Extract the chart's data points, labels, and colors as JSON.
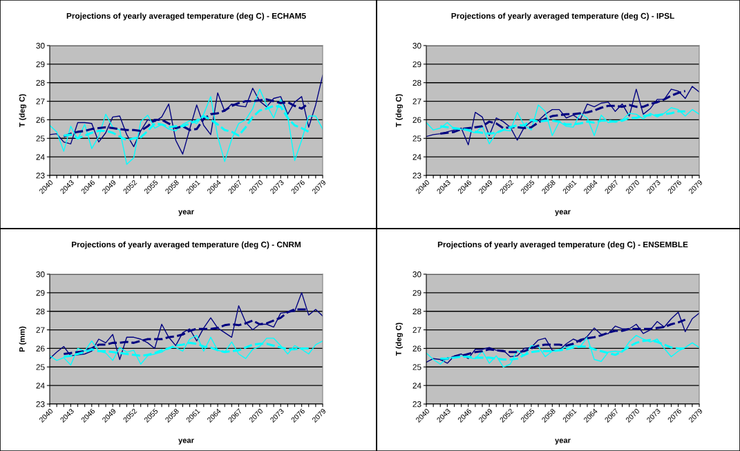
{
  "chart_data": [
    {
      "type": "line",
      "title": "Projections of yearly averaged temperature (deg C) - ECHAM5",
      "xlabel": "year",
      "ylabel": "T (deg C)",
      "categories": [
        "2040",
        null,
        null,
        "2043",
        null,
        null,
        "2046",
        null,
        null,
        "2049",
        null,
        null,
        "2052",
        null,
        null,
        "2055",
        null,
        null,
        "2058",
        null,
        null,
        "2061",
        null,
        null,
        "2064",
        null,
        null,
        "2067",
        null,
        null,
        "2070",
        null,
        null,
        "2073",
        null,
        null,
        "2076",
        null,
        null,
        "2079"
      ],
      "ylim": [
        23,
        30
      ],
      "yticks": [
        23,
        24,
        25,
        26,
        27,
        28,
        29,
        30
      ],
      "grid": "y",
      "marker": "none",
      "series": [
        {
          "color": "#000080",
          "line_style": "solid",
          "values": [
            25.2,
            25.25,
            24.8,
            24.7,
            25.85,
            25.85,
            25.8,
            24.8,
            25.3,
            26.15,
            26.2,
            25.2,
            24.55,
            25.4,
            26.0,
            25.9,
            26.15,
            26.85,
            24.9,
            24.15,
            25.5,
            26.8,
            25.7,
            25.2,
            27.45,
            26.45,
            26.85,
            26.75,
            26.7,
            27.7,
            27.0,
            26.7,
            27.15,
            27.25,
            26.3,
            26.95,
            27.25,
            25.6,
            26.8,
            28.4
          ]
        },
        {
          "color": "#00ffff",
          "line_style": "solid",
          "values": [
            25.7,
            25.35,
            24.3,
            25.65,
            24.95,
            25.75,
            24.45,
            25.1,
            26.3,
            25.6,
            25.45,
            23.6,
            23.95,
            25.9,
            26.25,
            25.55,
            25.75,
            25.5,
            25.4,
            25.75,
            25.95,
            25.8,
            26.3,
            27.25,
            25.1,
            23.75,
            24.95,
            25.8,
            26.0,
            26.6,
            27.65,
            26.8,
            26.1,
            27.1,
            26.2,
            23.8,
            24.9,
            26.2,
            26.2,
            25.5
          ]
        },
        {
          "color": "#000080",
          "line_style": "dashed",
          "values": [
            null,
            null,
            25.1,
            25.25,
            25.35,
            25.4,
            25.5,
            25.55,
            25.6,
            25.55,
            25.5,
            25.45,
            25.45,
            25.4,
            25.65,
            26.0,
            26.0,
            25.8,
            25.55,
            25.65,
            25.45,
            25.5,
            26.05,
            26.3,
            26.35,
            26.5,
            26.75,
            26.9,
            27.0,
            27.0,
            27.05,
            27.1,
            27.0,
            26.9,
            26.95,
            26.75,
            26.6,
            26.9,
            null,
            null
          ]
        },
        {
          "color": "#00ffff",
          "line_style": "dashed",
          "values": [
            null,
            null,
            25.15,
            25.2,
            25.0,
            25.15,
            25.3,
            25.4,
            25.4,
            25.3,
            25.1,
            24.9,
            25.0,
            25.05,
            25.4,
            25.8,
            25.75,
            25.6,
            25.65,
            25.65,
            25.8,
            25.95,
            26.2,
            26.0,
            25.75,
            25.45,
            25.35,
            25.15,
            25.6,
            26.15,
            26.5,
            26.6,
            26.75,
            26.7,
            26.1,
            25.7,
            25.55,
            25.35,
            null,
            null
          ]
        }
      ]
    },
    {
      "type": "line",
      "title": "Projections of yearly averaged temperature (deg C) - IPSL",
      "xlabel": "year",
      "ylabel": "T (deg C)",
      "categories": [
        "2040",
        null,
        null,
        "2043",
        null,
        null,
        "2046",
        null,
        null,
        "2049",
        null,
        null,
        "2052",
        null,
        null,
        "2055",
        null,
        null,
        "2058",
        null,
        null,
        "2061",
        null,
        null,
        "2064",
        null,
        null,
        "2067",
        null,
        null,
        "2070",
        null,
        null,
        "2073",
        null,
        null,
        "2076",
        null,
        null,
        "2079"
      ],
      "ylim": [
        23,
        30
      ],
      "yticks": [
        23,
        24,
        25,
        26,
        27,
        28,
        29,
        30
      ],
      "grid": "y",
      "marker": "none",
      "series": [
        {
          "color": "#000080",
          "line_style": "solid",
          "values": [
            25.1,
            25.2,
            25.25,
            25.35,
            25.45,
            25.55,
            24.65,
            26.4,
            26.15,
            25.15,
            26.1,
            25.9,
            25.6,
            24.9,
            25.6,
            25.9,
            25.95,
            26.3,
            26.55,
            26.55,
            26.1,
            26.25,
            26.0,
            26.85,
            26.7,
            26.9,
            26.95,
            26.45,
            26.85,
            26.2,
            27.65,
            26.3,
            26.6,
            27.1,
            27.1,
            27.65,
            27.55,
            27.15,
            27.8,
            27.5
          ]
        },
        {
          "color": "#00ffff",
          "line_style": "solid",
          "values": [
            25.85,
            25.45,
            25.55,
            25.85,
            25.5,
            25.5,
            25.4,
            25.3,
            25.65,
            24.7,
            25.3,
            25.45,
            25.4,
            26.4,
            25.7,
            25.45,
            26.8,
            26.45,
            25.15,
            25.9,
            25.65,
            25.6,
            26.35,
            26.1,
            25.15,
            26.25,
            25.85,
            25.9,
            26.0,
            26.35,
            26.3,
            26.05,
            26.35,
            26.15,
            26.35,
            26.65,
            26.55,
            26.2,
            26.55,
            26.3
          ]
        },
        {
          "color": "#000080",
          "line_style": "dashed",
          "values": [
            null,
            null,
            25.25,
            25.3,
            25.35,
            25.5,
            25.55,
            25.6,
            25.65,
            25.9,
            25.8,
            25.55,
            25.6,
            25.6,
            25.55,
            25.6,
            25.85,
            26.05,
            26.2,
            26.25,
            26.3,
            26.3,
            26.35,
            26.4,
            26.5,
            26.65,
            26.75,
            26.75,
            26.7,
            26.8,
            26.7,
            26.7,
            26.85,
            26.95,
            27.1,
            27.3,
            27.45,
            27.55,
            null,
            null
          ]
        },
        {
          "color": "#00ffff",
          "line_style": "dashed",
          "values": [
            null,
            null,
            25.65,
            25.6,
            25.55,
            25.5,
            25.45,
            25.35,
            25.3,
            25.25,
            25.3,
            25.45,
            25.6,
            25.7,
            25.7,
            26.0,
            25.9,
            25.95,
            25.95,
            25.9,
            25.75,
            25.75,
            25.8,
            25.9,
            25.85,
            25.95,
            25.95,
            25.9,
            25.95,
            26.1,
            26.1,
            26.2,
            26.25,
            26.25,
            26.3,
            26.35,
            26.45,
            26.45,
            null,
            null
          ]
        }
      ]
    },
    {
      "type": "line",
      "title": "Projections of yearly averaged temperature (deg C) - CNRM",
      "xlabel": "year",
      "ylabel": "P (mm)",
      "categories": [
        "2040",
        null,
        null,
        "2043",
        null,
        null,
        "2046",
        null,
        null,
        "2049",
        null,
        null,
        "2052",
        null,
        null,
        "2055",
        null,
        null,
        "2058",
        null,
        null,
        "2061",
        null,
        null,
        "2064",
        null,
        null,
        "2067",
        null,
        null,
        "2070",
        null,
        null,
        "2073",
        null,
        null,
        "2076",
        null,
        null,
        "2079"
      ],
      "ylim": [
        23,
        30
      ],
      "yticks": [
        23,
        24,
        25,
        26,
        27,
        28,
        29,
        30
      ],
      "grid": "y",
      "marker": "none",
      "series": [
        {
          "color": "#000080",
          "line_style": "solid",
          "values": [
            25.45,
            25.8,
            26.1,
            25.6,
            25.65,
            25.7,
            25.85,
            26.5,
            26.3,
            26.75,
            25.4,
            26.6,
            26.6,
            26.5,
            26.3,
            26.0,
            27.3,
            26.6,
            26.15,
            26.85,
            27.05,
            26.4,
            27.1,
            27.65,
            27.1,
            26.85,
            26.6,
            28.3,
            27.4,
            27.0,
            27.3,
            27.3,
            27.15,
            27.9,
            27.95,
            28.0,
            29.0,
            27.8,
            28.1,
            27.75
          ]
        },
        {
          "color": "#00ffff",
          "line_style": "solid",
          "values": [
            25.6,
            25.35,
            25.5,
            25.1,
            26.0,
            25.85,
            26.4,
            25.85,
            25.75,
            25.35,
            26.05,
            25.8,
            25.9,
            25.15,
            25.6,
            25.7,
            25.8,
            26.05,
            26.05,
            25.85,
            26.5,
            26.7,
            25.85,
            26.6,
            25.9,
            25.8,
            26.35,
            25.7,
            25.45,
            25.95,
            26.1,
            26.55,
            26.55,
            26.15,
            25.7,
            26.15,
            25.95,
            25.7,
            26.2,
            26.4
          ]
        },
        {
          "color": "#000080",
          "line_style": "dashed",
          "values": [
            null,
            null,
            25.7,
            25.75,
            25.8,
            25.85,
            26.0,
            26.2,
            26.2,
            26.3,
            26.3,
            26.35,
            26.3,
            26.4,
            26.5,
            26.5,
            26.5,
            26.6,
            26.65,
            26.75,
            26.95,
            27.05,
            27.05,
            27.05,
            27.1,
            27.25,
            27.3,
            27.25,
            27.35,
            27.5,
            27.3,
            27.35,
            27.5,
            27.65,
            27.95,
            28.1,
            28.1,
            28.1,
            null,
            null
          ]
        },
        {
          "color": "#00ffff",
          "line_style": "dashed",
          "values": [
            null,
            null,
            25.55,
            25.6,
            25.7,
            25.8,
            25.95,
            25.85,
            25.85,
            25.8,
            25.75,
            25.7,
            25.65,
            25.6,
            25.65,
            25.75,
            25.9,
            26.0,
            26.15,
            26.2,
            26.3,
            26.25,
            26.1,
            26.05,
            25.9,
            25.8,
            25.85,
            25.9,
            26.05,
            26.2,
            26.25,
            26.25,
            26.15,
            26.05,
            25.95,
            25.95,
            26.0,
            26.0,
            null,
            null
          ]
        }
      ]
    },
    {
      "type": "line",
      "title": "Projections of yearly averaged temperature (deg C) - ENSEMBLE",
      "xlabel": "year",
      "ylabel": "T (deg C)",
      "categories": [
        "2040",
        null,
        null,
        "2043",
        null,
        null,
        "2046",
        null,
        null,
        "2049",
        null,
        null,
        "2052",
        null,
        null,
        "2055",
        null,
        null,
        "2058",
        null,
        null,
        "2061",
        null,
        null,
        "2064",
        null,
        null,
        "2067",
        null,
        null,
        "2070",
        null,
        null,
        "2073",
        null,
        null,
        "2076",
        null,
        null,
        "2079"
      ],
      "ylim": [
        23,
        30
      ],
      "yticks": [
        23,
        24,
        25,
        26,
        27,
        28,
        29,
        30
      ],
      "grid": "y",
      "marker": "none",
      "series": [
        {
          "color": "#000080",
          "line_style": "solid",
          "values": [
            25.25,
            25.45,
            25.4,
            25.2,
            25.6,
            25.7,
            25.45,
            25.95,
            25.95,
            26.05,
            25.9,
            25.9,
            25.55,
            25.6,
            26.0,
            26.05,
            26.45,
            26.55,
            25.9,
            25.9,
            26.25,
            26.5,
            26.35,
            26.65,
            27.1,
            26.75,
            26.8,
            27.2,
            27.05,
            27.05,
            27.3,
            26.8,
            27.0,
            27.45,
            27.15,
            27.6,
            27.95,
            26.9,
            27.6,
            27.9
          ]
        },
        {
          "color": "#00ffff",
          "line_style": "solid",
          "values": [
            25.75,
            25.4,
            25.15,
            25.5,
            25.5,
            25.6,
            25.5,
            25.45,
            25.85,
            25.2,
            25.6,
            25.0,
            25.15,
            25.9,
            25.6,
            26.15,
            26.1,
            25.55,
            25.85,
            25.9,
            26.1,
            26.15,
            26.1,
            26.6,
            25.4,
            25.3,
            25.8,
            25.85,
            25.8,
            26.35,
            26.7,
            26.5,
            26.35,
            26.5,
            26.0,
            25.55,
            25.85,
            26.05,
            26.3,
            26.05
          ]
        },
        {
          "color": "#000080",
          "line_style": "dashed",
          "values": [
            null,
            null,
            25.4,
            25.45,
            25.55,
            25.6,
            25.7,
            25.8,
            25.85,
            25.95,
            25.9,
            25.85,
            25.8,
            25.8,
            25.85,
            26.0,
            26.15,
            26.2,
            26.2,
            26.2,
            26.15,
            26.25,
            26.45,
            26.55,
            26.6,
            26.7,
            26.85,
            26.95,
            26.95,
            27.05,
            27.05,
            27.05,
            27.05,
            27.1,
            27.15,
            27.3,
            27.4,
            27.55,
            null,
            null
          ]
        },
        {
          "color": "#00ffff",
          "line_style": "dashed",
          "values": [
            null,
            null,
            25.45,
            25.45,
            25.5,
            25.55,
            25.55,
            25.5,
            25.5,
            25.5,
            25.45,
            25.4,
            25.4,
            25.45,
            25.65,
            25.8,
            25.85,
            25.85,
            25.85,
            25.9,
            25.95,
            26.05,
            26.1,
            26.1,
            25.95,
            25.85,
            25.75,
            25.65,
            25.85,
            26.1,
            26.3,
            26.4,
            26.45,
            26.35,
            26.2,
            26.05,
            26.0,
            26.0,
            null,
            null
          ]
        }
      ]
    }
  ]
}
